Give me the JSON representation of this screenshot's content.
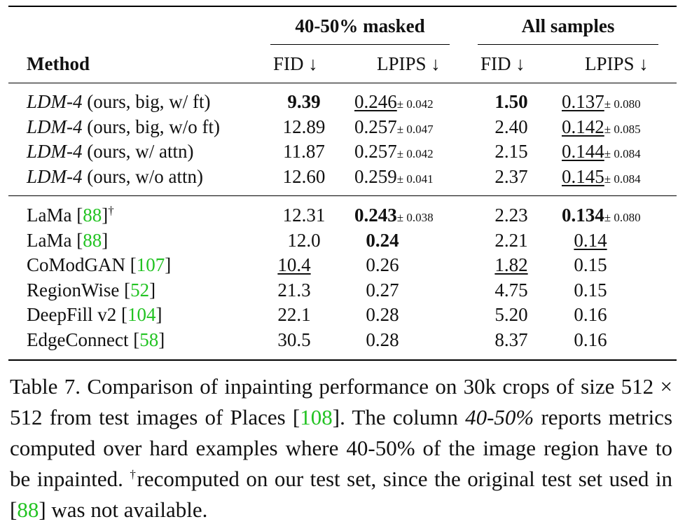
{
  "table": {
    "groups": {
      "masked": "40-50% masked",
      "all": "All samples"
    },
    "headers": {
      "method": "Method",
      "fid": "FID ↓",
      "lpips": "LPIPS ↓"
    },
    "section1": [
      {
        "method_it": "LDM-4",
        "method_rest": " (ours, big, w/ ft)",
        "fid_m": "9.39",
        "lp_m": "0.246",
        "lp_m_pm": "± 0.042",
        "fid_a": "1.50",
        "lp_a": "0.137",
        "lp_a_pm": "± 0.080"
      },
      {
        "method_it": "LDM-4",
        "method_rest": " (ours, big, w/o ft)",
        "fid_m": "12.89",
        "lp_m": "0.257",
        "lp_m_pm": "± 0.047",
        "fid_a": "2.40",
        "lp_a": "0.142",
        "lp_a_pm": "± 0.085"
      },
      {
        "method_it": "LDM-4",
        "method_rest": " (ours, w/ attn)",
        "fid_m": "11.87",
        "lp_m": "0.257",
        "lp_m_pm": "± 0.042",
        "fid_a": "2.15",
        "lp_a": "0.144",
        "lp_a_pm": "± 0.084"
      },
      {
        "method_it": "LDM-4",
        "method_rest": " (ours, w/o attn)",
        "fid_m": "12.60",
        "lp_m": "0.259",
        "lp_m_pm": "± 0.041",
        "fid_a": "2.37",
        "lp_a": "0.145",
        "lp_a_pm": "± 0.084"
      }
    ],
    "section2": [
      {
        "name": "LaMa [",
        "cite": "88",
        "close": "]",
        "sup": "†",
        "fid_m": "12.31",
        "lp_m": "0.243",
        "lp_m_pm": "± 0.038",
        "fid_a": "2.23",
        "lp_a": "0.134",
        "lp_a_pm": "± 0.080"
      },
      {
        "name": "LaMa [",
        "cite": "88",
        "close": "]",
        "fid_m": "12.0",
        "lp_m": "0.24",
        "fid_a": "2.21",
        "lp_a": "0.14"
      },
      {
        "name": "CoModGAN [",
        "cite": "107",
        "close": "]",
        "fid_m": "10.4",
        "lp_m": "0.26",
        "fid_a": "1.82",
        "lp_a": "0.15"
      },
      {
        "name": "RegionWise [",
        "cite": "52",
        "close": "]",
        "fid_m": "21.3",
        "lp_m": "0.27",
        "fid_a": "4.75",
        "lp_a": "0.15"
      },
      {
        "name": "DeepFill v2 [",
        "cite": "104",
        "close": "]",
        "fid_m": "22.1",
        "lp_m": "0.28",
        "fid_a": "5.20",
        "lp_a": "0.16"
      },
      {
        "name": "EdgeConnect [",
        "cite": "58",
        "close": "]",
        "fid_m": "30.5",
        "lp_m": "0.28",
        "fid_a": "8.37",
        "lp_a": "0.16"
      }
    ]
  },
  "caption": {
    "t1": "Table 7. Comparison of inpainting performance on 30k crops of size 512 × 512 from test images of Places [",
    "c1": "108",
    "t2": "]. The column ",
    "it": "40-50%",
    "t3": " reports metrics computed over hard examples where 40-50% of the image region have to be inpainted. ",
    "dagger": "†",
    "t4": "recomputed on our test set, since the original test set used in [",
    "c2": "88",
    "t5": "] was not available."
  },
  "colors": {
    "citation": "#22c322",
    "text": "#111111"
  }
}
